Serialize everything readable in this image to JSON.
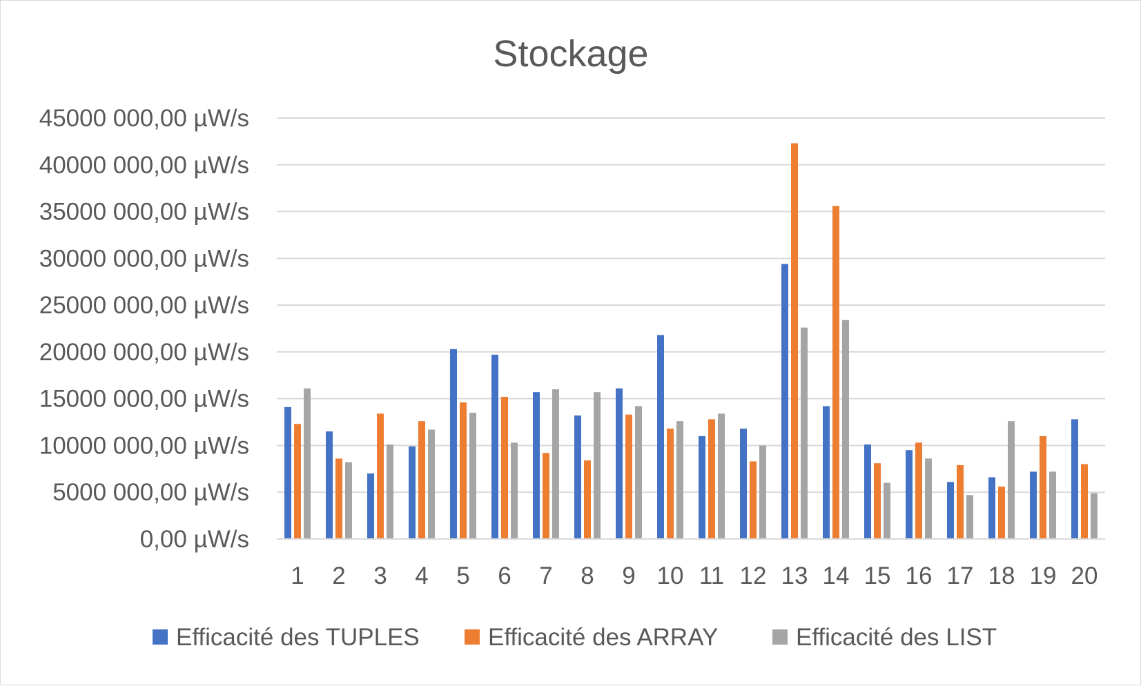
{
  "chart_data": {
    "type": "bar",
    "title": "Stockage",
    "xlabel": "",
    "ylabel": "",
    "categories": [
      "1",
      "2",
      "3",
      "4",
      "5",
      "6",
      "7",
      "8",
      "9",
      "10",
      "11",
      "12",
      "13",
      "14",
      "15",
      "16",
      "17",
      "18",
      "19",
      "20"
    ],
    "y_ticks": [
      {
        "value": 0,
        "label": "0,00 µW/s"
      },
      {
        "value": 5000000,
        "label": "5000 000,00 µW/s"
      },
      {
        "value": 10000000,
        "label": "10000 000,00 µW/s"
      },
      {
        "value": 15000000,
        "label": "15000 000,00 µW/s"
      },
      {
        "value": 20000000,
        "label": "20000 000,00 µW/s"
      },
      {
        "value": 25000000,
        "label": "25000 000,00 µW/s"
      },
      {
        "value": 30000000,
        "label": "30000 000,00 µW/s"
      },
      {
        "value": 35000000,
        "label": "35000 000,00 µW/s"
      },
      {
        "value": 40000000,
        "label": "40000 000,00 µW/s"
      },
      {
        "value": 45000000,
        "label": "45000 000,00 µW/s"
      }
    ],
    "ylim": [
      0,
      45000000
    ],
    "grid": true,
    "legend_position": "bottom",
    "series": [
      {
        "name": "Efficacité des TUPLES",
        "color": "#4472c4",
        "values": [
          14100000,
          11500000,
          7000000,
          9900000,
          20300000,
          19700000,
          15700000,
          13200000,
          16100000,
          21800000,
          11000000,
          11800000,
          29400000,
          14200000,
          10100000,
          9500000,
          6100000,
          6600000,
          7200000,
          12800000
        ]
      },
      {
        "name": "Efficacité des ARRAY",
        "color": "#ed7d31",
        "values": [
          12300000,
          8600000,
          13400000,
          12600000,
          14600000,
          15200000,
          9200000,
          8400000,
          13300000,
          11800000,
          12800000,
          8300000,
          42300000,
          35600000,
          8100000,
          10300000,
          7900000,
          5600000,
          11000000,
          8000000
        ]
      },
      {
        "name": "Efficacité des LIST",
        "color": "#a5a5a5",
        "values": [
          16100000,
          8200000,
          10100000,
          11700000,
          13500000,
          10300000,
          16000000,
          15700000,
          14200000,
          12600000,
          13400000,
          10000000,
          22600000,
          23400000,
          6000000,
          8600000,
          4700000,
          12600000,
          7200000,
          4900000
        ]
      }
    ]
  }
}
